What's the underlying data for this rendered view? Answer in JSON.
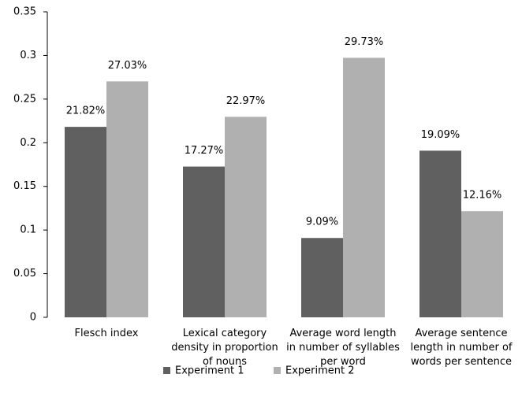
{
  "chart_data": {
    "type": "bar",
    "categories": [
      "Flesch index",
      "Lexical category density in proportion of nouns",
      "Average word length in number of syllables per word",
      "Average sentence length in number of words per sentence"
    ],
    "series": [
      {
        "name": "Experiment 1",
        "color": "#606060",
        "values": [
          0.2182,
          0.1727,
          0.0909,
          0.1909
        ],
        "value_labels": [
          "21.82%",
          "17.27%",
          "9.09%",
          "19.09%"
        ]
      },
      {
        "name": "Experiment 2",
        "color": "#b0b0b0",
        "values": [
          0.2703,
          0.2297,
          0.2973,
          0.1216
        ],
        "value_labels": [
          "27.03%",
          "22.97%",
          "29.73%",
          "12.16%"
        ]
      }
    ],
    "ylim": [
      0,
      0.35
    ],
    "yticks": [
      0,
      0.05,
      0.1,
      0.15,
      0.2,
      0.25,
      0.3,
      0.35
    ],
    "grid": false,
    "legend": "bottom"
  }
}
